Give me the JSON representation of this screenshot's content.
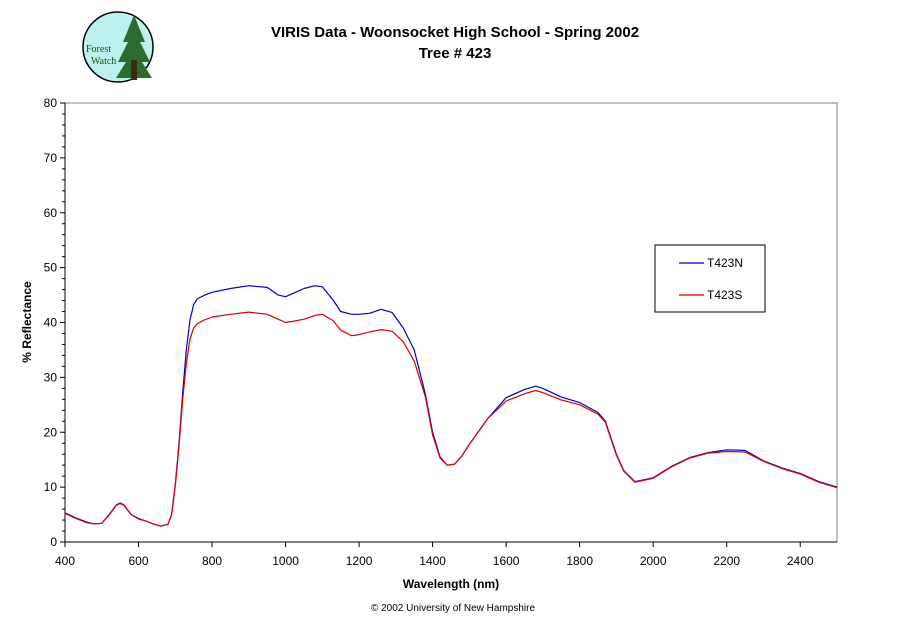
{
  "logo": {
    "line1": "Forest",
    "line2": "Watch",
    "bg_color": "#bff0f0",
    "tree_color": "#2e6b2e"
  },
  "footer": "© 2002 University of New Hampshire",
  "chart_data": {
    "type": "line",
    "title": "VIRIS Data - Woonsocket High School - Spring 2002",
    "subtitle": "Tree # 423",
    "xlabel": "Wavelength (nm)",
    "ylabel": "% Reflectance",
    "xlim": [
      400,
      2500
    ],
    "ylim": [
      0,
      80
    ],
    "xticks": [
      400,
      600,
      800,
      1000,
      1200,
      1400,
      1600,
      1800,
      2000,
      2200,
      2400
    ],
    "yticks": [
      0,
      10,
      20,
      30,
      40,
      50,
      60,
      70,
      80
    ],
    "grid": false,
    "legend_position": "right",
    "series": [
      {
        "name": "T423N",
        "color": "#0000cc",
        "x": [
          400,
          430,
          460,
          480,
          500,
          520,
          540,
          550,
          560,
          580,
          600,
          620,
          640,
          660,
          680,
          690,
          700,
          710,
          720,
          730,
          740,
          750,
          760,
          780,
          800,
          850,
          900,
          950,
          980,
          1000,
          1020,
          1050,
          1080,
          1100,
          1130,
          1150,
          1180,
          1200,
          1230,
          1260,
          1290,
          1320,
          1350,
          1380,
          1400,
          1420,
          1440,
          1460,
          1480,
          1500,
          1550,
          1600,
          1650,
          1680,
          1700,
          1750,
          1800,
          1850,
          1870,
          1900,
          1920,
          1950,
          2000,
          2050,
          2100,
          2150,
          2200,
          2250,
          2300,
          2350,
          2400,
          2450,
          2500
        ],
        "y": [
          5.3,
          4.4,
          3.6,
          3.3,
          3.4,
          5.0,
          6.8,
          7.1,
          6.8,
          5.0,
          4.3,
          3.8,
          3.3,
          2.9,
          3.2,
          5.0,
          10.5,
          18.0,
          27.0,
          35.0,
          40.5,
          43.3,
          44.3,
          45.0,
          45.5,
          46.2,
          46.7,
          46.4,
          45.0,
          44.7,
          45.3,
          46.2,
          46.7,
          46.5,
          44.0,
          42.0,
          41.5,
          41.5,
          41.7,
          42.4,
          41.8,
          39.0,
          35.0,
          27.0,
          20.0,
          15.5,
          14.0,
          14.2,
          15.7,
          17.8,
          22.5,
          26.3,
          27.8,
          28.4,
          28.0,
          26.4,
          25.4,
          23.6,
          22.0,
          16.0,
          13.0,
          11.0,
          11.7,
          13.8,
          15.4,
          16.3,
          16.8,
          16.7,
          14.8,
          13.5,
          12.5,
          11.0,
          10.0
        ]
      },
      {
        "name": "T423S",
        "color": "#dd0000",
        "x": [
          400,
          430,
          460,
          480,
          500,
          520,
          540,
          550,
          560,
          580,
          600,
          620,
          640,
          660,
          680,
          690,
          700,
          710,
          720,
          730,
          740,
          750,
          760,
          780,
          800,
          850,
          900,
          950,
          980,
          1000,
          1020,
          1050,
          1080,
          1100,
          1130,
          1150,
          1180,
          1200,
          1230,
          1260,
          1290,
          1320,
          1350,
          1380,
          1400,
          1420,
          1440,
          1460,
          1480,
          1500,
          1550,
          1600,
          1650,
          1680,
          1700,
          1750,
          1800,
          1850,
          1870,
          1900,
          1920,
          1950,
          2000,
          2050,
          2100,
          2150,
          2200,
          2250,
          2300,
          2350,
          2400,
          2450,
          2500
        ],
        "y": [
          5.2,
          4.3,
          3.5,
          3.3,
          3.4,
          4.9,
          6.7,
          7.0,
          6.7,
          5.0,
          4.2,
          3.8,
          3.3,
          2.9,
          3.2,
          5.0,
          10.2,
          17.5,
          25.8,
          32.5,
          37.0,
          39.0,
          39.8,
          40.5,
          41.0,
          41.5,
          41.9,
          41.5,
          40.6,
          40.0,
          40.2,
          40.6,
          41.3,
          41.5,
          40.3,
          38.6,
          37.6,
          37.8,
          38.3,
          38.7,
          38.4,
          36.5,
          33.0,
          26.5,
          19.5,
          15.3,
          14.0,
          14.2,
          15.7,
          17.8,
          22.5,
          25.7,
          27.0,
          27.6,
          27.2,
          25.9,
          25.0,
          23.3,
          21.8,
          15.8,
          12.9,
          10.9,
          11.6,
          13.7,
          15.3,
          16.2,
          16.5,
          16.4,
          14.7,
          13.4,
          12.4,
          10.9,
          9.9
        ]
      }
    ]
  }
}
